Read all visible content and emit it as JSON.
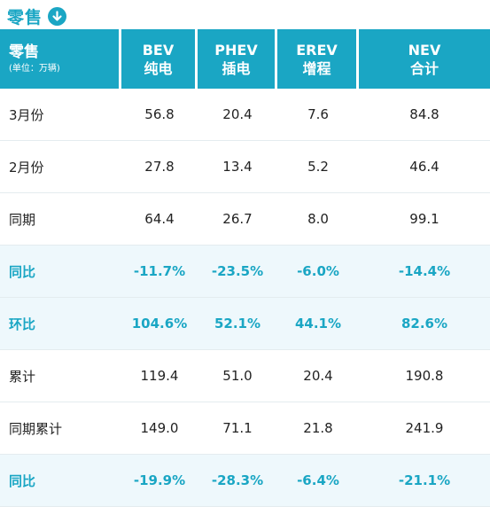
{
  "title": "零售",
  "header": {
    "label_main": "零售",
    "label_unit": "(单位：万辆)",
    "columns": [
      {
        "line1": "BEV",
        "line2": "纯电"
      },
      {
        "line1": "PHEV",
        "line2": "插电"
      },
      {
        "line1": "EREV",
        "line2": "增程"
      },
      {
        "line1": "NEV",
        "line2": "合计"
      }
    ]
  },
  "rows": [
    {
      "label": "3月份",
      "values": [
        "56.8",
        "20.4",
        "7.6",
        "84.8"
      ],
      "highlight": false
    },
    {
      "label": "2月份",
      "values": [
        "27.8",
        "13.4",
        "5.2",
        "46.4"
      ],
      "highlight": false
    },
    {
      "label": "同期",
      "values": [
        "64.4",
        "26.7",
        "8.0",
        "99.1"
      ],
      "highlight": false
    },
    {
      "label": "同比",
      "values": [
        "-11.7%",
        "-23.5%",
        "-6.0%",
        "-14.4%"
      ],
      "highlight": true
    },
    {
      "label": "环比",
      "values": [
        "104.6%",
        "52.1%",
        "44.1%",
        "82.6%"
      ],
      "highlight": true
    },
    {
      "label": "累计",
      "values": [
        "119.4",
        "51.0",
        "20.4",
        "190.8"
      ],
      "highlight": false
    },
    {
      "label": "同期累计",
      "values": [
        "149.0",
        "71.1",
        "21.8",
        "241.9"
      ],
      "highlight": false
    },
    {
      "label": "同比",
      "values": [
        "-19.9%",
        "-28.3%",
        "-6.4%",
        "-21.1%"
      ],
      "highlight": true
    }
  ],
  "colors": {
    "accent": "#1aa6c4",
    "highlight_row_bg": "#eef8fc"
  },
  "icons": {
    "title_icon": "arrow-down-circle-icon"
  }
}
